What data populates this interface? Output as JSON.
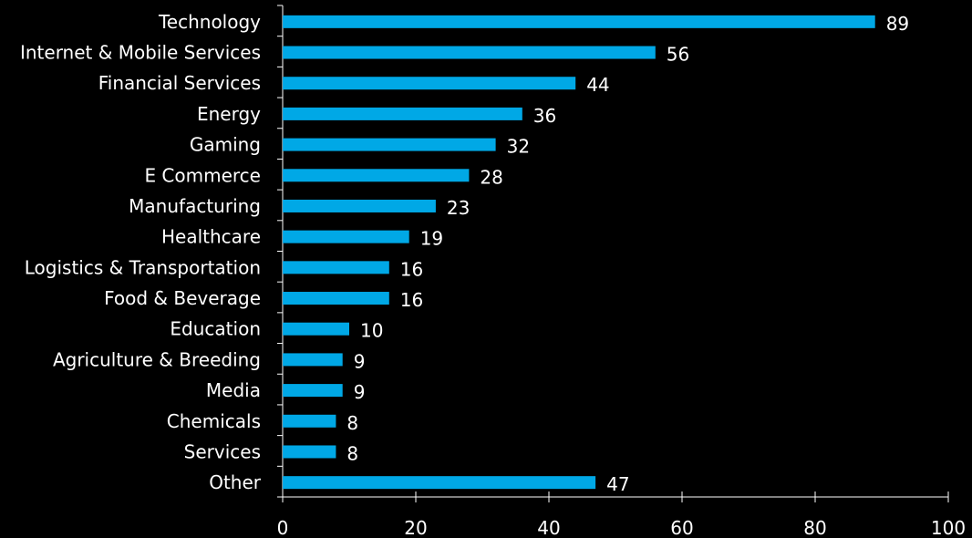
{
  "chart_data": {
    "type": "bar",
    "orientation": "horizontal",
    "categories": [
      "Technology",
      "Internet & Mobile Services",
      "Financial Services",
      "Energy",
      "Gaming",
      "E Commerce",
      "Manufacturing",
      "Healthcare",
      "Logistics & Transportation",
      "Food & Beverage",
      "Education",
      "Agriculture & Breeding",
      "Media",
      "Chemicals",
      "Services",
      "Other"
    ],
    "values": [
      89,
      56,
      44,
      36,
      32,
      28,
      23,
      19,
      16,
      16,
      10,
      9,
      9,
      8,
      8,
      47
    ],
    "xlim": [
      0,
      100
    ],
    "xticks": [
      0,
      20,
      40,
      60,
      80,
      100
    ],
    "title": "",
    "xlabel": "",
    "ylabel": "",
    "grid": false,
    "legend": "none",
    "colors": {
      "background": "#000000",
      "bar": "#00a8e6",
      "text": "#ffffff",
      "axis": "#ffffff"
    }
  }
}
